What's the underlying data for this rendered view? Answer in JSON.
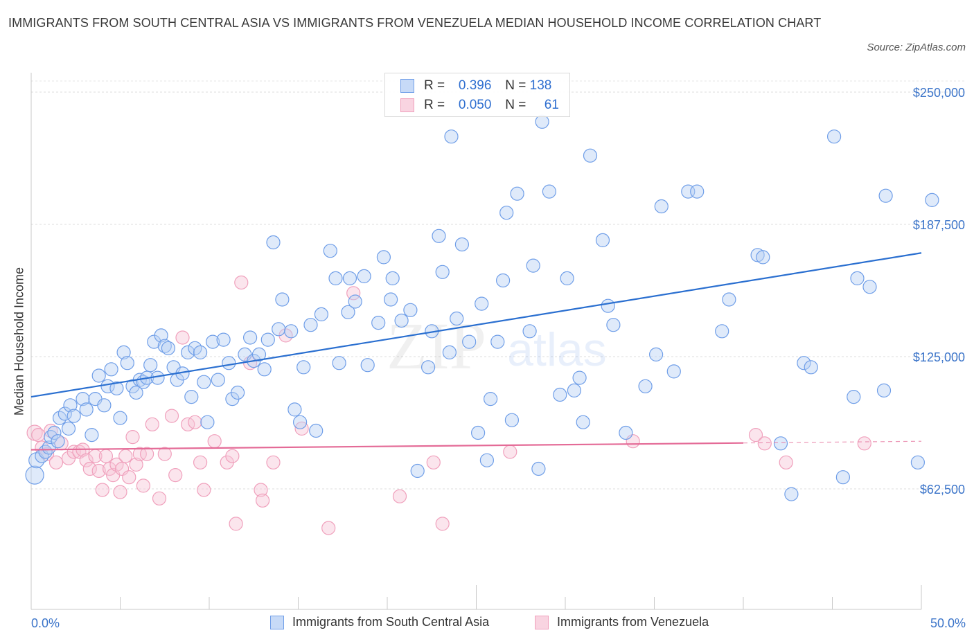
{
  "title": "IMMIGRANTS FROM SOUTH CENTRAL ASIA VS IMMIGRANTS FROM VENEZUELA MEDIAN HOUSEHOLD INCOME CORRELATION CHART",
  "source": "Source: ZipAtlas.com",
  "watermark": {
    "zip": "ZIP",
    "atlas": "atlas"
  },
  "legend": {
    "r_label": "R =",
    "n_label": "N =",
    "rows": [
      {
        "r": "0.396",
        "n": "138"
      },
      {
        "r": "0.050",
        "n": "61"
      }
    ]
  },
  "chart_data": {
    "type": "scatter",
    "title": "IMMIGRANTS FROM SOUTH CENTRAL ASIA VS IMMIGRANTS FROM VENEZUELA MEDIAN HOUSEHOLD INCOME CORRELATION CHART",
    "xlabel": "",
    "ylabel": "Median Household Income",
    "xlim": [
      0,
      50
    ],
    "ylim": [
      0,
      265000
    ],
    "x_tick_labels": [
      "0.0%",
      "50.0%"
    ],
    "y_ticks": [
      62500,
      125000,
      187500,
      250000
    ],
    "y_tick_labels": [
      "$62,500",
      "$125,000",
      "$187,500",
      "$250,000"
    ],
    "colors": {
      "blue": "#6f9ee8",
      "blue_line": "#2a6fd0",
      "pink": "#f0a0bc",
      "pink_line": "#e46b97",
      "axis_text": "#3b74c9"
    },
    "series": [
      {
        "name": "Immigrants from South Central Asia",
        "color": "#6f9ee8",
        "trend": {
          "x0": 0,
          "y0": 106000,
          "x1": 50,
          "y1": 174000,
          "dashed_from": null
        },
        "points": [
          [
            0.2,
            69000
          ],
          [
            0.3,
            76000
          ],
          [
            0.6,
            78000
          ],
          [
            0.8,
            80000
          ],
          [
            1.0,
            82000
          ],
          [
            1.1,
            87000
          ],
          [
            1.3,
            89000
          ],
          [
            1.5,
            85000
          ],
          [
            1.6,
            96000
          ],
          [
            1.9,
            98000
          ],
          [
            2.1,
            91000
          ],
          [
            2.2,
            102000
          ],
          [
            2.4,
            97000
          ],
          [
            2.9,
            105000
          ],
          [
            3.1,
            100000
          ],
          [
            3.4,
            88000
          ],
          [
            3.6,
            105000
          ],
          [
            3.8,
            116000
          ],
          [
            4.1,
            102000
          ],
          [
            4.3,
            111000
          ],
          [
            4.5,
            119000
          ],
          [
            4.8,
            110000
          ],
          [
            5.0,
            96000
          ],
          [
            5.2,
            127000
          ],
          [
            5.4,
            122000
          ],
          [
            5.7,
            111000
          ],
          [
            5.9,
            108000
          ],
          [
            6.1,
            114000
          ],
          [
            6.3,
            113000
          ],
          [
            6.5,
            115000
          ],
          [
            6.7,
            121000
          ],
          [
            6.9,
            132000
          ],
          [
            7.1,
            115000
          ],
          [
            7.3,
            135000
          ],
          [
            7.5,
            130000
          ],
          [
            7.7,
            129000
          ],
          [
            8.0,
            120000
          ],
          [
            8.2,
            114000
          ],
          [
            8.5,
            117000
          ],
          [
            8.8,
            127000
          ],
          [
            9.0,
            106000
          ],
          [
            9.2,
            129000
          ],
          [
            9.5,
            127000
          ],
          [
            9.7,
            113000
          ],
          [
            9.9,
            94000
          ],
          [
            10.2,
            132000
          ],
          [
            10.5,
            114000
          ],
          [
            10.8,
            133000
          ],
          [
            11.1,
            122000
          ],
          [
            11.3,
            105000
          ],
          [
            11.6,
            108000
          ],
          [
            12.0,
            126000
          ],
          [
            12.3,
            134000
          ],
          [
            12.5,
            123000
          ],
          [
            12.8,
            126000
          ],
          [
            13.1,
            119000
          ],
          [
            13.3,
            133000
          ],
          [
            13.6,
            179000
          ],
          [
            13.9,
            138000
          ],
          [
            14.1,
            152000
          ],
          [
            14.6,
            137000
          ],
          [
            14.8,
            100000
          ],
          [
            15.1,
            94000
          ],
          [
            15.3,
            120000
          ],
          [
            15.7,
            140000
          ],
          [
            16.0,
            90000
          ],
          [
            16.3,
            145000
          ],
          [
            16.8,
            175000
          ],
          [
            17.1,
            162000
          ],
          [
            17.3,
            122000
          ],
          [
            17.8,
            146000
          ],
          [
            17.9,
            162000
          ],
          [
            18.2,
            151000
          ],
          [
            18.7,
            163000
          ],
          [
            18.9,
            121000
          ],
          [
            19.5,
            141000
          ],
          [
            19.8,
            172000
          ],
          [
            20.2,
            152000
          ],
          [
            20.3,
            162000
          ],
          [
            20.8,
            142000
          ],
          [
            21.3,
            147000
          ],
          [
            21.7,
            71000
          ],
          [
            22.3,
            120000
          ],
          [
            22.5,
            137000
          ],
          [
            22.9,
            182000
          ],
          [
            23.1,
            165000
          ],
          [
            23.5,
            127000
          ],
          [
            23.9,
            143000
          ],
          [
            23.6,
            229000
          ],
          [
            24.2,
            178000
          ],
          [
            24.6,
            132000
          ],
          [
            25.1,
            89000
          ],
          [
            25.3,
            150000
          ],
          [
            25.6,
            76000
          ],
          [
            25.8,
            105000
          ],
          [
            26.2,
            132000
          ],
          [
            26.5,
            161000
          ],
          [
            26.7,
            193000
          ],
          [
            27.0,
            95000
          ],
          [
            27.3,
            202000
          ],
          [
            28.0,
            137000
          ],
          [
            28.2,
            168000
          ],
          [
            28.5,
            72000
          ],
          [
            28.7,
            236000
          ],
          [
            29.1,
            203000
          ],
          [
            29.7,
            107000
          ],
          [
            30.1,
            162000
          ],
          [
            30.5,
            109000
          ],
          [
            30.8,
            115000
          ],
          [
            31.0,
            94000
          ],
          [
            31.4,
            220000
          ],
          [
            32.1,
            180000
          ],
          [
            32.4,
            149000
          ],
          [
            32.7,
            140000
          ],
          [
            33.4,
            89000
          ],
          [
            34.5,
            111000
          ],
          [
            35.1,
            126000
          ],
          [
            35.4,
            196000
          ],
          [
            36.1,
            118000
          ],
          [
            36.9,
            203000
          ],
          [
            37.4,
            203000
          ],
          [
            38.8,
            137000
          ],
          [
            39.2,
            152000
          ],
          [
            40.8,
            173000
          ],
          [
            41.1,
            172000
          ],
          [
            42.1,
            84000
          ],
          [
            42.7,
            60000
          ],
          [
            43.4,
            122000
          ],
          [
            43.8,
            120000
          ],
          [
            45.1,
            229000
          ],
          [
            45.6,
            68000
          ],
          [
            46.2,
            106000
          ],
          [
            46.4,
            162000
          ],
          [
            47.1,
            158000
          ],
          [
            47.9,
            109000
          ],
          [
            48.0,
            201000
          ],
          [
            49.8,
            75000
          ],
          [
            50.6,
            199000
          ]
        ]
      },
      {
        "name": "Immigrants from Venezuela",
        "color": "#f0a0bc",
        "trend": {
          "x0": 0,
          "y0": 81000,
          "x1": 50,
          "y1": 85000,
          "dashed_from": 40
        },
        "points": [
          [
            0.2,
            89000
          ],
          [
            0.4,
            88000
          ],
          [
            0.6,
            82000
          ],
          [
            0.9,
            79000
          ],
          [
            1.1,
            90000
          ],
          [
            1.4,
            75000
          ],
          [
            1.7,
            84000
          ],
          [
            2.1,
            77000
          ],
          [
            2.4,
            80000
          ],
          [
            2.7,
            80000
          ],
          [
            2.9,
            81000
          ],
          [
            3.1,
            76000
          ],
          [
            3.3,
            72000
          ],
          [
            3.6,
            78000
          ],
          [
            3.8,
            71000
          ],
          [
            4.0,
            62000
          ],
          [
            4.2,
            78000
          ],
          [
            4.4,
            72000
          ],
          [
            4.6,
            69000
          ],
          [
            4.8,
            74000
          ],
          [
            5.0,
            61000
          ],
          [
            5.1,
            72000
          ],
          [
            5.3,
            78000
          ],
          [
            5.5,
            68000
          ],
          [
            5.7,
            87000
          ],
          [
            5.9,
            74000
          ],
          [
            6.1,
            79000
          ],
          [
            6.3,
            64000
          ],
          [
            6.5,
            79000
          ],
          [
            6.8,
            93000
          ],
          [
            7.2,
            58000
          ],
          [
            7.5,
            79000
          ],
          [
            7.9,
            97000
          ],
          [
            8.1,
            69000
          ],
          [
            8.5,
            134000
          ],
          [
            8.8,
            93000
          ],
          [
            9.2,
            94000
          ],
          [
            9.5,
            75000
          ],
          [
            9.7,
            62000
          ],
          [
            10.3,
            85000
          ],
          [
            11.0,
            75000
          ],
          [
            11.3,
            78000
          ],
          [
            11.5,
            46000
          ],
          [
            11.8,
            160000
          ],
          [
            12.3,
            122000
          ],
          [
            12.9,
            62000
          ],
          [
            13.0,
            57000
          ],
          [
            13.6,
            75000
          ],
          [
            14.3,
            135000
          ],
          [
            15.2,
            91000
          ],
          [
            16.7,
            44000
          ],
          [
            18.1,
            155000
          ],
          [
            20.7,
            59000
          ],
          [
            22.6,
            75000
          ],
          [
            23.1,
            46000
          ],
          [
            26.9,
            80000
          ],
          [
            33.8,
            85000
          ],
          [
            40.7,
            88000
          ],
          [
            41.2,
            84000
          ],
          [
            42.4,
            75000
          ],
          [
            46.8,
            84000
          ]
        ]
      }
    ]
  }
}
